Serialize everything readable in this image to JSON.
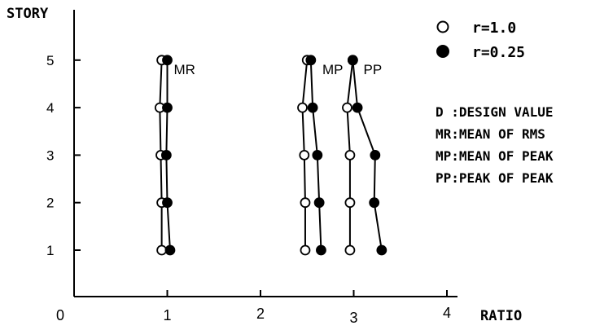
{
  "chart_data": {
    "type": "line",
    "ylabel": "STORY",
    "xlabel": "RATIO",
    "xlim": [
      0,
      4.5
    ],
    "ylim": [
      0,
      5.9
    ],
    "x_ticks": [
      "0",
      "1",
      "2",
      "3",
      "4"
    ],
    "y_ticks": [
      "1",
      "2",
      "3",
      "4",
      "5"
    ],
    "legend": {
      "position": "top-right",
      "markers": [
        {
          "label": "r=1.0",
          "marker": "open-circle"
        },
        {
          "label": "r=0.25",
          "marker": "filled-circle"
        }
      ],
      "definitions": [
        "D :DESIGN VALUE",
        "MR:MEAN OF RMS",
        "MP:MEAN OF PEAK",
        "PP:PEAK OF PEAK"
      ]
    },
    "group_labels": [
      {
        "text": "MR",
        "story": 5,
        "ratio": 1.0
      },
      {
        "text": "MP",
        "story": 5,
        "ratio": 2.55
      },
      {
        "text": "PP",
        "story": 5,
        "ratio": 3.0
      }
    ],
    "series": [
      {
        "group": "MR",
        "marker": "open-circle",
        "story": [
          1,
          2,
          3,
          4,
          5
        ],
        "ratio": [
          0.94,
          0.94,
          0.93,
          0.92,
          0.94
        ]
      },
      {
        "group": "MR",
        "marker": "filled-circle",
        "story": [
          1,
          2,
          3,
          4,
          5
        ],
        "ratio": [
          1.03,
          1.0,
          0.99,
          1.0,
          1.0
        ]
      },
      {
        "group": "MP",
        "marker": "open-circle",
        "story": [
          1,
          2,
          3,
          4,
          5
        ],
        "ratio": [
          2.48,
          2.48,
          2.47,
          2.45,
          2.5
        ]
      },
      {
        "group": "MP",
        "marker": "filled-circle",
        "story": [
          1,
          2,
          3,
          4,
          5
        ],
        "ratio": [
          2.65,
          2.63,
          2.61,
          2.56,
          2.54
        ]
      },
      {
        "group": "PP",
        "marker": "open-circle",
        "story": [
          1,
          2,
          3,
          4,
          5
        ],
        "ratio": [
          2.96,
          2.96,
          2.96,
          2.93,
          2.99
        ]
      },
      {
        "group": "PP",
        "marker": "filled-circle",
        "story": [
          1,
          2,
          3,
          4,
          5
        ],
        "ratio": [
          3.3,
          3.22,
          3.23,
          3.04,
          2.99
        ]
      }
    ]
  }
}
